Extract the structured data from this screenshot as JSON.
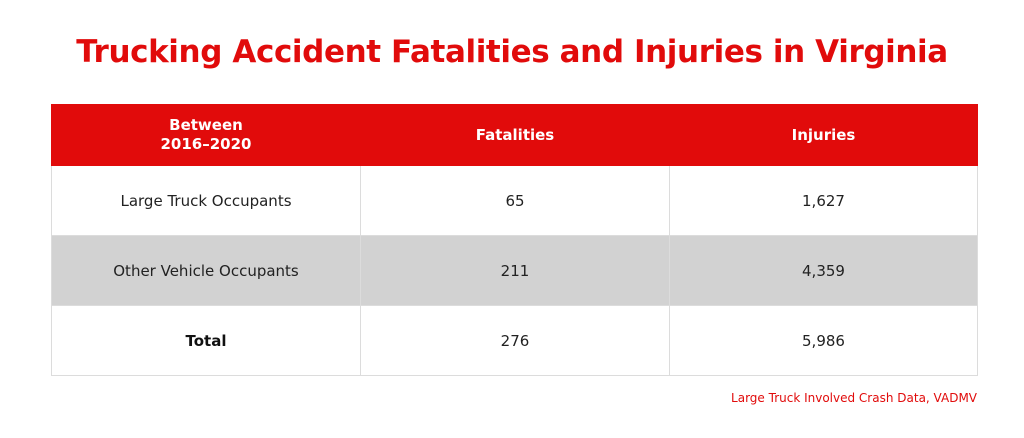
{
  "title": "Trucking Accident Fatalities and Injuries in Virginia",
  "table": {
    "headers": {
      "period_line1": "Between",
      "period_line2": "2016–2020",
      "fatalities": "Fatalities",
      "injuries": "Injuries"
    },
    "rows": [
      {
        "label": "Large Truck Occupants",
        "fatalities": "65",
        "injuries": "1,627"
      },
      {
        "label": "Other Vehicle Occupants",
        "fatalities": "211",
        "injuries": "4,359"
      },
      {
        "label": "Total",
        "fatalities": "276",
        "injuries": "5,986"
      }
    ]
  },
  "source": "Large Truck Involved Crash Data, VADMV",
  "colors": {
    "accent_red": "#e10b0b",
    "shaded_row": "#d2d2d2",
    "header_text": "#ffffff"
  }
}
